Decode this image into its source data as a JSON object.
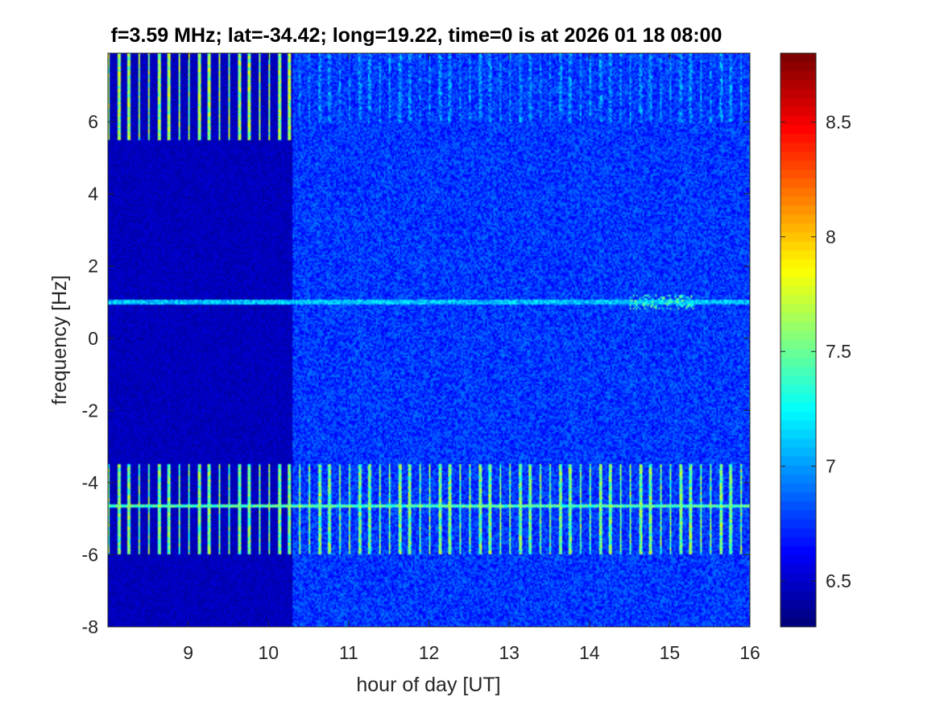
{
  "chart_data": {
    "type": "heatmap",
    "title": "f=3.59 MHz;  lat=-34.42; long=19.22, time=0 is at 2026 01 18 08:00",
    "xlabel": "hour of day [UT]",
    "ylabel": "frequency [Hz]",
    "xlim": [
      8.0,
      16.0
    ],
    "ylim": [
      -8.0,
      7.9
    ],
    "xticks": [
      9,
      10,
      11,
      12,
      13,
      14,
      15,
      16
    ],
    "yticks": [
      -8,
      -6,
      -4,
      -2,
      0,
      2,
      4,
      6
    ],
    "colormap": "jet",
    "clim": [
      6.3,
      8.8
    ],
    "colorbar_ticks": [
      6.5,
      7,
      7.5,
      8,
      8.5
    ],
    "grid": false,
    "background_level_before_10_3_UT": 6.45,
    "background_level_after_10_3_UT": 6.75,
    "features": [
      {
        "label": "carrier line",
        "y": 1.0,
        "x_range": [
          8.0,
          16.0
        ],
        "level": 7.3
      },
      {
        "label": "carrier line",
        "y": -4.65,
        "x_range": [
          8.0,
          16.0
        ],
        "level": 7.6
      },
      {
        "label": "periodic vertical streaks",
        "y_range": [
          -6.0,
          -3.5
        ],
        "x_range": [
          8.0,
          16.0
        ],
        "level": 7.8
      },
      {
        "label": "periodic vertical streaks",
        "y_range": [
          5.5,
          7.9
        ],
        "x_range": [
          8.0,
          10.3
        ],
        "level": 7.9
      },
      {
        "label": "periodic vertical streaks",
        "y_range": [
          6.0,
          7.9
        ],
        "x_range": [
          10.3,
          16.0
        ],
        "level": 7.2
      },
      {
        "label": "enhanced spread near carrier",
        "y_range": [
          0.8,
          1.2
        ],
        "x_range": [
          14.5,
          15.3
        ],
        "level": 7.6
      }
    ]
  }
}
